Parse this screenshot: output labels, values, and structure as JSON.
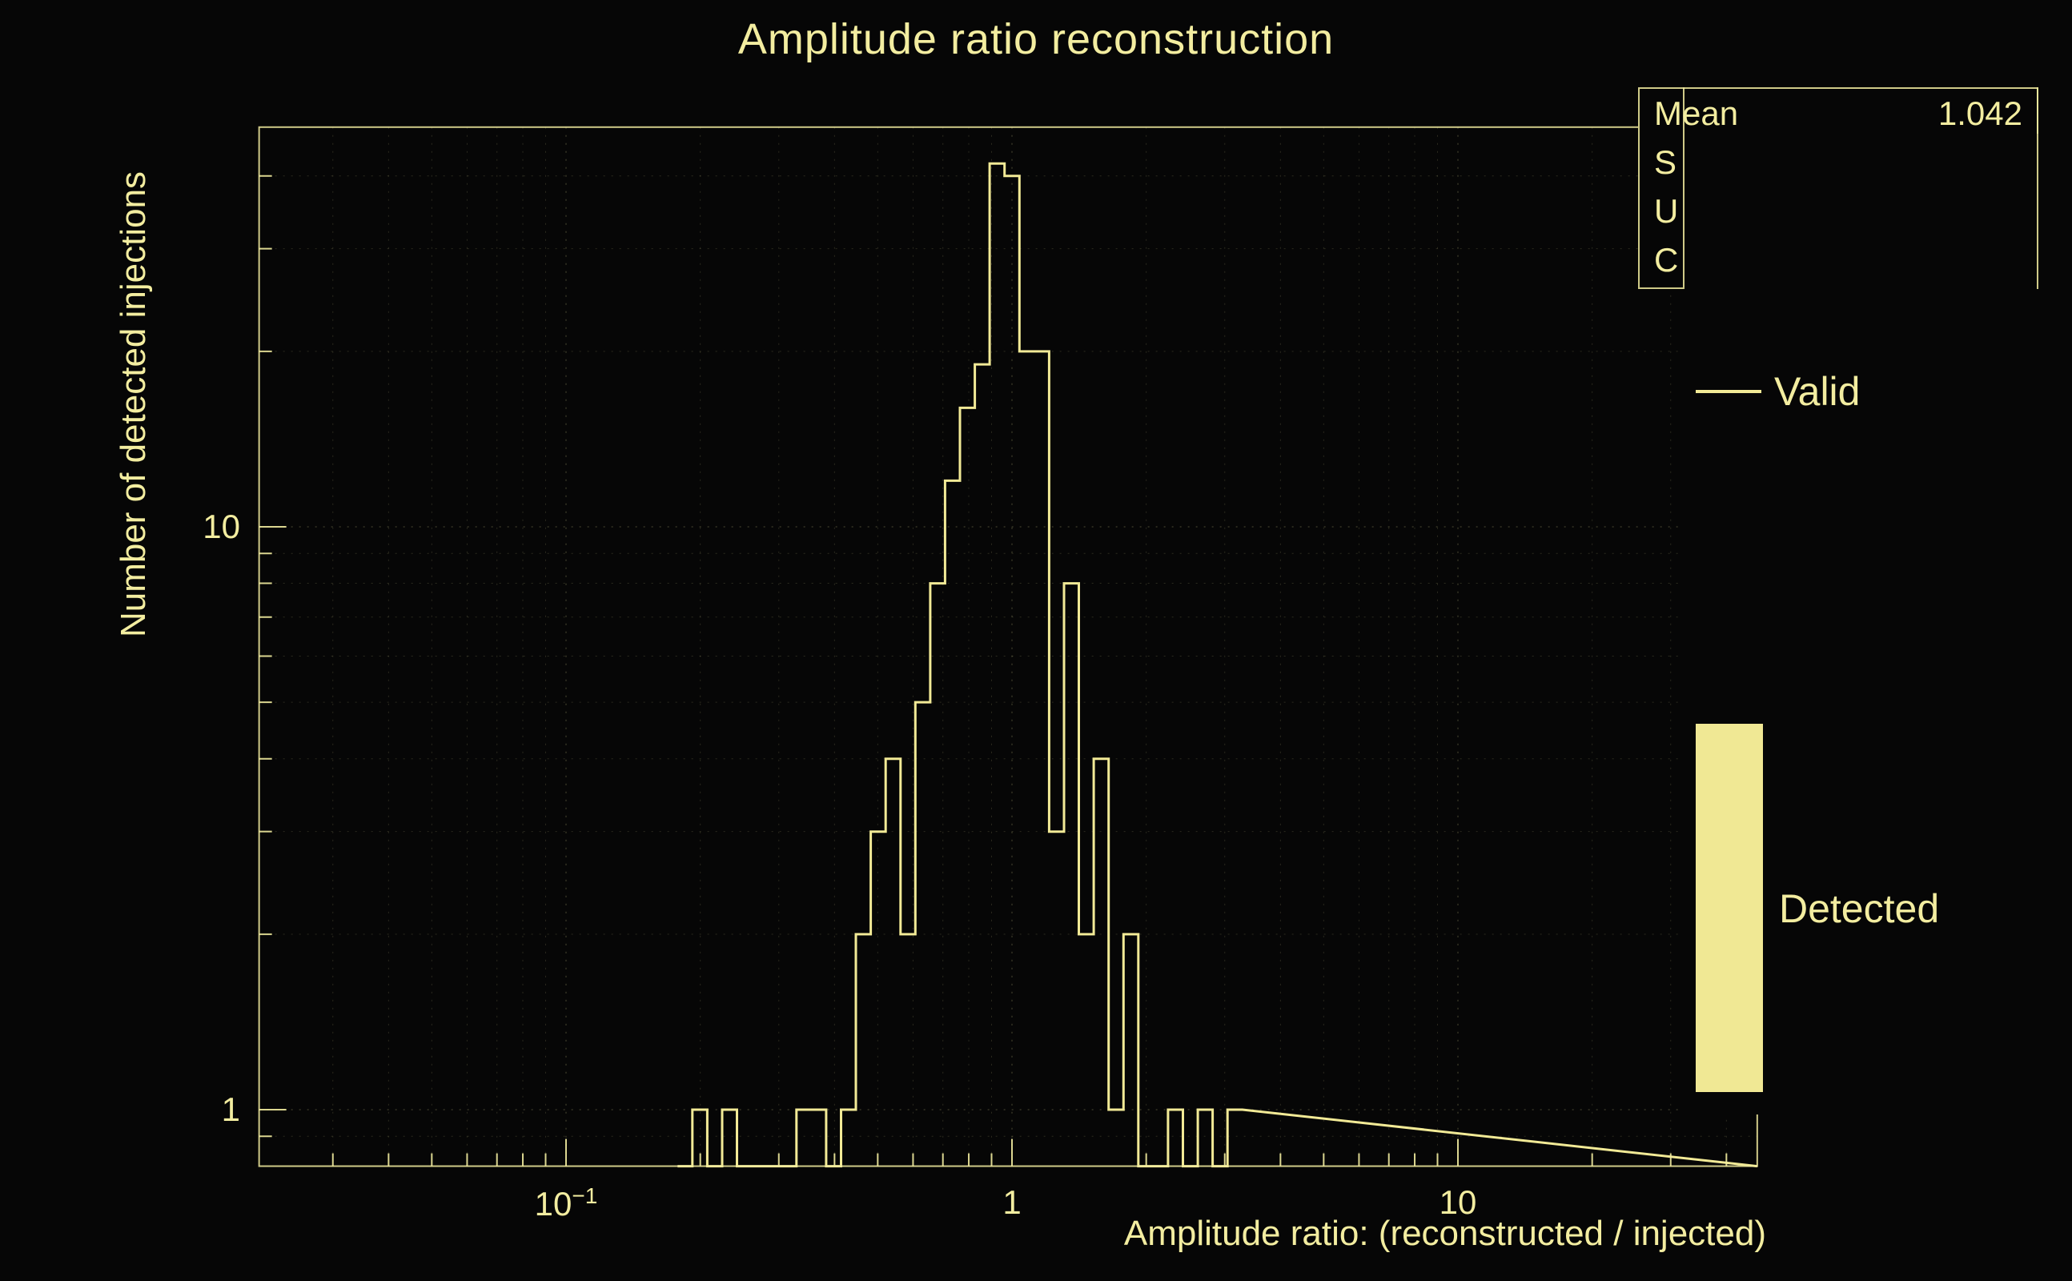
{
  "title": "Amplitude ratio reconstruction",
  "colors": {
    "background": "#060606",
    "foreground": "#f3eda0",
    "hist_line": "#f2ea96",
    "legend_fill": "#f0e894"
  },
  "stats_box": {
    "lines": [
      {
        "label": "Mean",
        "value": "1.042"
      },
      {
        "label": "S",
        "value": ""
      },
      {
        "label": "U",
        "value": ""
      },
      {
        "label": "C",
        "value": ""
      }
    ]
  },
  "legend": {
    "entries": [
      {
        "label": "Valid",
        "marker": "line"
      },
      {
        "label": "Detected",
        "marker": "filled-box"
      }
    ]
  },
  "chart_data": {
    "type": "bar",
    "style": "step-histogram",
    "title": "Amplitude ratio reconstruction",
    "xlabel": "Amplitude ratio: (reconstructed / injected)",
    "ylabel": "Number of detected injections",
    "xscale": "log",
    "yscale": "log",
    "xlim": [
      0.0205,
      46.9
    ],
    "ylim": [
      0.8,
      48.5
    ],
    "grid": true,
    "legend_position": "right",
    "stats": {
      "Mean": 1.042
    },
    "series": [
      {
        "name": "Valid",
        "bins_per_decade": 30,
        "first_bin_log10_left": -0.75,
        "counts": [
          0,
          1,
          0,
          1,
          0,
          0,
          0,
          0,
          1,
          1,
          0,
          1,
          2,
          3,
          4,
          2,
          5,
          8,
          12,
          16,
          19,
          42,
          40,
          20,
          20,
          3,
          8,
          2,
          4,
          1,
          2,
          0,
          0,
          1,
          0,
          1,
          0,
          1
        ]
      }
    ],
    "x_ticks": [
      {
        "log10": -1,
        "base": "10",
        "exp": "−1"
      },
      {
        "log10": 0,
        "base": "1",
        "exp": ""
      },
      {
        "log10": 1,
        "base": "10",
        "exp": ""
      }
    ],
    "y_ticks": [
      {
        "log10": 0,
        "base": "1"
      },
      {
        "log10": 1,
        "base": "10"
      }
    ]
  }
}
